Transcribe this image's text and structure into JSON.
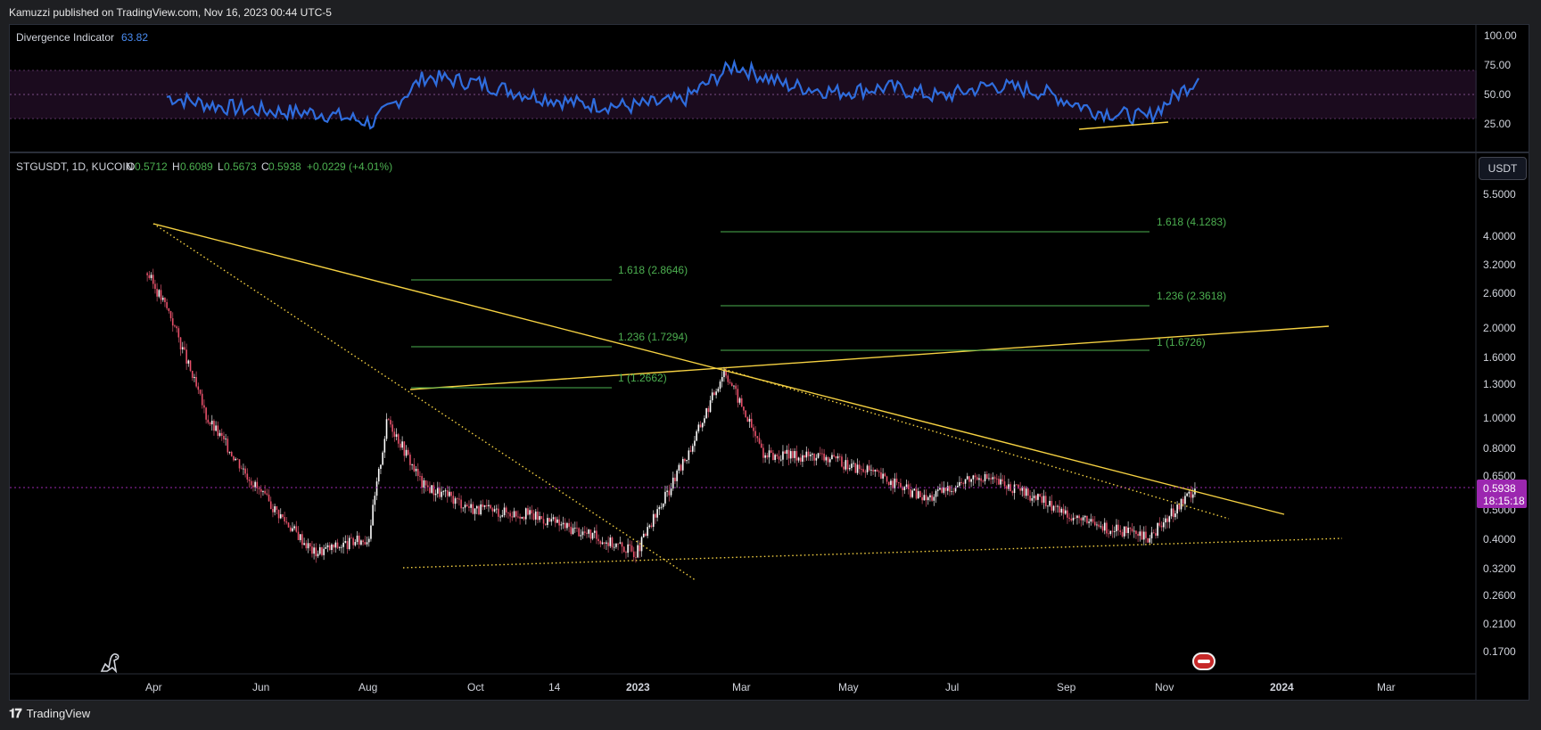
{
  "header": {
    "publisher_text": "Kamuzzi published on TradingView.com, Nov 16, 2023 00:44 UTC-5"
  },
  "footer": {
    "brand": "TradingView",
    "logo_icon": "tradingview-logo-icon"
  },
  "colors": {
    "background": "#000000",
    "fib": "#4caf50",
    "trendline": "#f5d142",
    "indicator": "#2f6ddd",
    "price_marker": "#9c27b0"
  },
  "indicator": {
    "name": "Divergence Indicator",
    "value": "63.82",
    "ticks": [
      "100.00",
      "75.00",
      "50.00",
      "25.00"
    ],
    "ylim": [
      0,
      110
    ],
    "band": [
      30,
      70
    ]
  },
  "main": {
    "symbol": "STGUSDT, 1D, KUCOIN",
    "o_label": "O",
    "o_value": "0.5712",
    "h_label": "H",
    "h_value": "0.6089",
    "l_label": "L",
    "l_value": "0.5673",
    "c_label": "C",
    "c_value": "0.5938",
    "change": "+0.0229 (+4.01%)",
    "currency_button": "USDT",
    "last_price": "0.5938",
    "countdown": "18:15:18",
    "price_ticks": [
      "5.5000",
      "4.0000",
      "3.2000",
      "2.6000",
      "2.0000",
      "1.6000",
      "1.3000",
      "1.0000",
      "0.8000",
      "0.6500",
      "0.5000",
      "0.4000",
      "0.3200",
      "0.2600",
      "0.2100",
      "0.1700"
    ],
    "time_ticks": [
      "Apr",
      "Jun",
      "Aug",
      "Oct",
      "14",
      "2023",
      "Mar",
      "May",
      "Jul",
      "Sep",
      "Nov",
      "2024",
      "Mar"
    ],
    "fib_labels": [
      "1.618 (2.8646)",
      "1.236 (1.7294)",
      "1 (1.2662)",
      "1.618 (4.1283)",
      "1.236 (2.3618)",
      "1 (1.6726)"
    ]
  },
  "chart_data": [
    {
      "type": "line",
      "name": "Divergence Indicator",
      "x": [
        "2022-03",
        "2022-04",
        "2022-05",
        "2022-06",
        "2022-07",
        "2022-08",
        "2022-09",
        "2022-10",
        "2022-11",
        "2022-12",
        "2023-01",
        "2023-02",
        "2023-03",
        "2023-04",
        "2023-05",
        "2023-06",
        "2023-07",
        "2023-08",
        "2023-09",
        "2023-10",
        "2023-11"
      ],
      "values": [
        48,
        40,
        36,
        34,
        26,
        65,
        60,
        50,
        42,
        40,
        45,
        75,
        58,
        52,
        56,
        48,
        58,
        52,
        36,
        30,
        63.82
      ],
      "ylim": [
        0,
        100
      ]
    },
    {
      "type": "line",
      "series_type": "candlestick (approximated by close path)",
      "x": [
        "2022-03-28",
        "2022-04-10",
        "2022-05-01",
        "2022-06-01",
        "2022-07-01",
        "2022-08-01",
        "2022-08-12",
        "2022-09-01",
        "2022-10-01",
        "2022-11-01",
        "2022-12-01",
        "2023-01-01",
        "2023-02-01",
        "2023-02-20",
        "2023-03-15",
        "2023-04-15",
        "2023-05-15",
        "2023-06-15",
        "2023-07-15",
        "2023-08-15",
        "2023-09-15",
        "2023-10-20",
        "2023-11-16"
      ],
      "values": [
        3.0,
        2.2,
        1.0,
        0.56,
        0.36,
        0.4,
        1.0,
        0.6,
        0.5,
        0.48,
        0.42,
        0.36,
        0.8,
        1.45,
        0.75,
        0.75,
        0.66,
        0.54,
        0.65,
        0.55,
        0.45,
        0.4,
        0.5938
      ],
      "y_scale": "log",
      "ylim": [
        0.15,
        6.0
      ]
    }
  ]
}
